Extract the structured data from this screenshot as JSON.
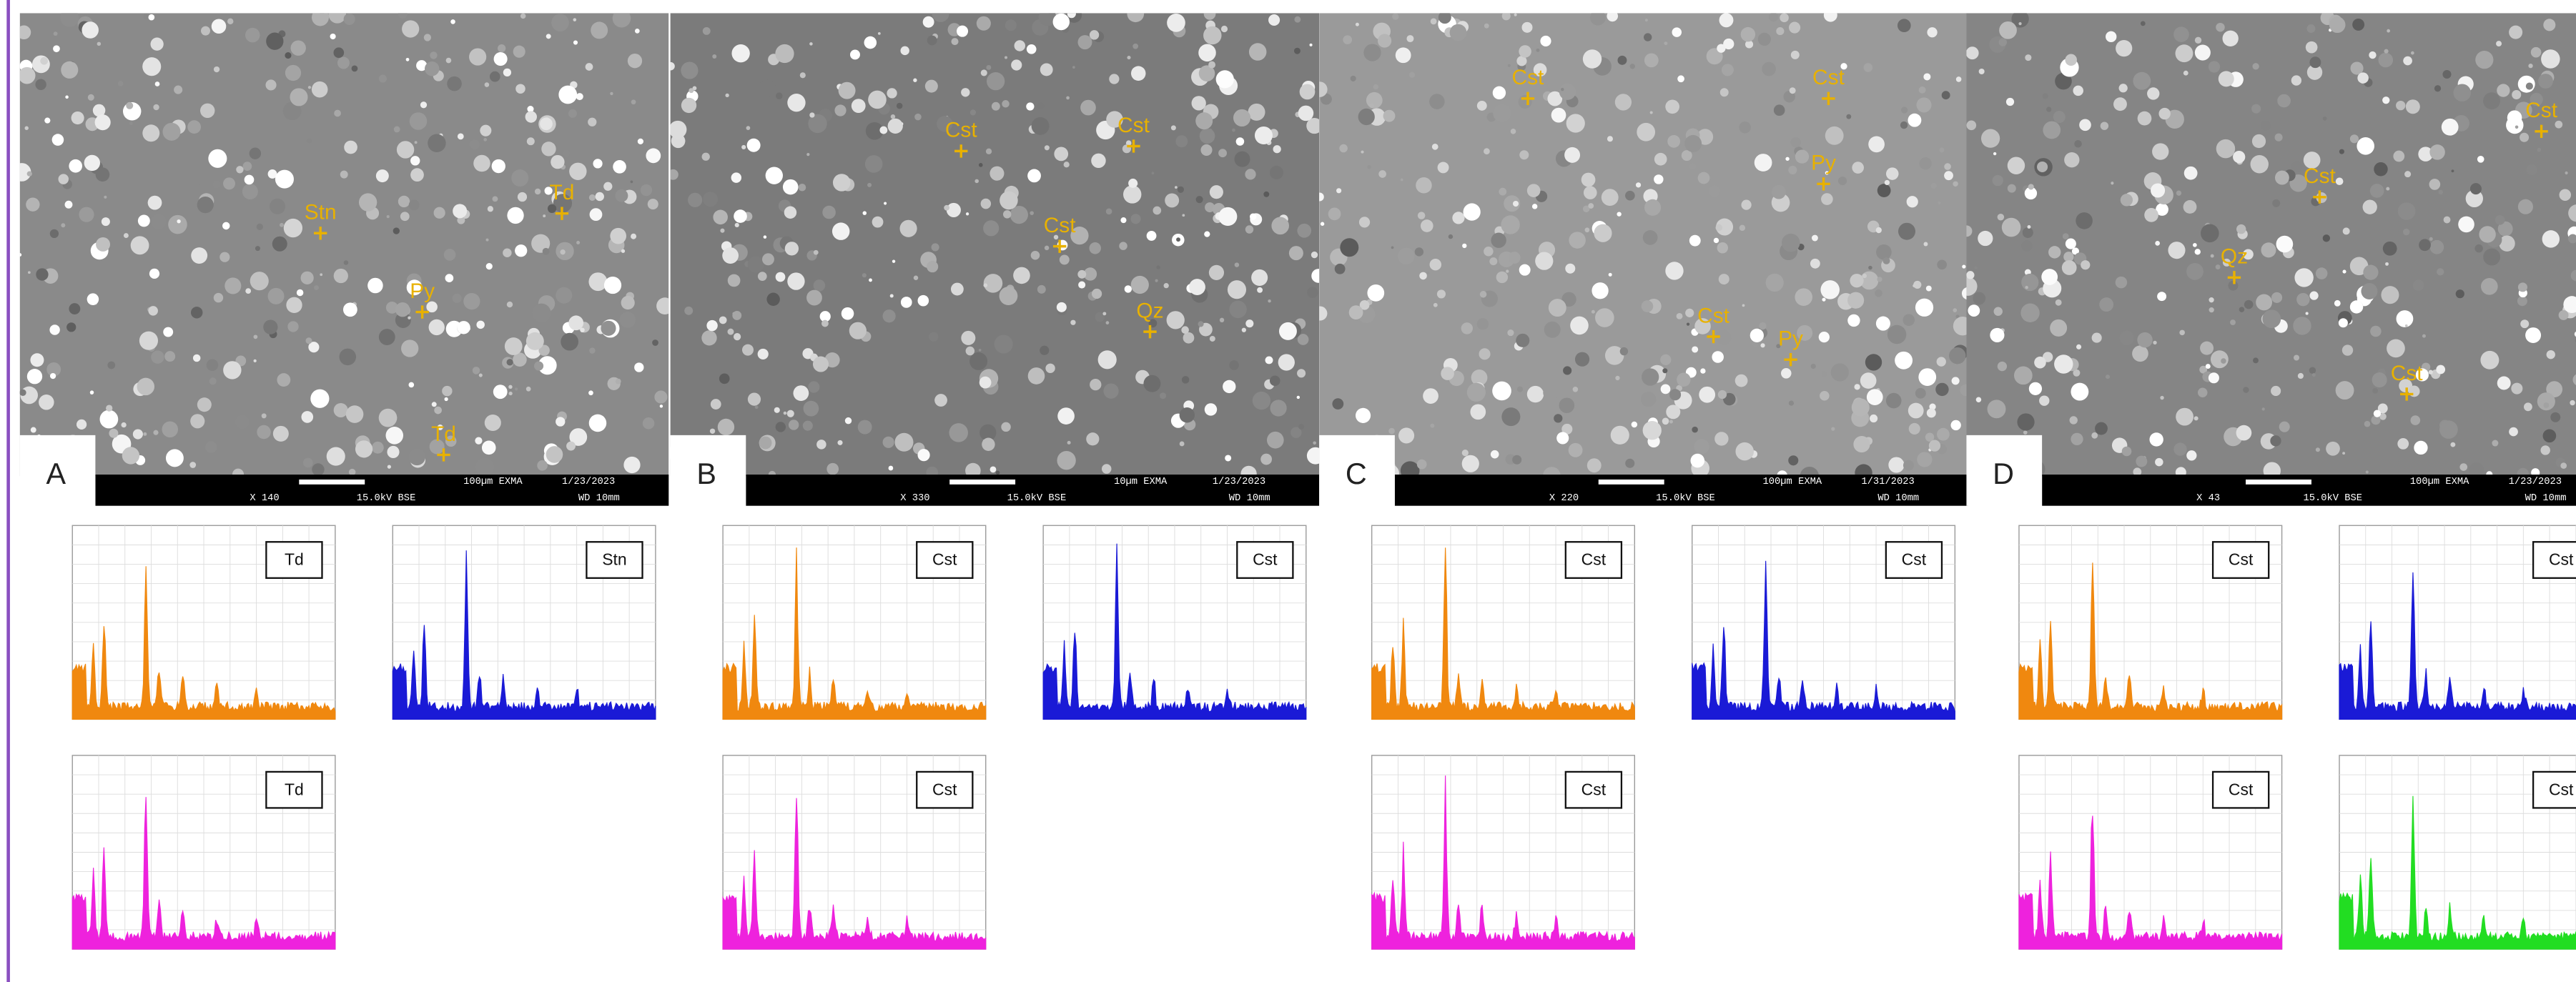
{
  "panels": [
    {
      "label": "A",
      "annotations": [
        "Stn",
        "Td",
        "Py",
        "Td"
      ],
      "info_bar": [
        "X 140",
        "15.0kV BSE",
        "100µm EXMA",
        "1/23/2023",
        "WD 10mm"
      ],
      "spectra": [
        {
          "label": "Td",
          "color": "#f0880f"
        },
        {
          "label": "Stn",
          "color": "#1a1ad6"
        },
        {
          "label": "Td",
          "color": "#ee22dd"
        }
      ]
    },
    {
      "label": "B",
      "annotations": [
        "Cst",
        "Cst",
        "Cst",
        "Qz"
      ],
      "info_bar": [
        "X 330",
        "15.0kV BSE",
        "10µm EXMA",
        "1/23/2023",
        "WD 10mm"
      ],
      "spectra": [
        {
          "label": "Cst",
          "color": "#f0880f"
        },
        {
          "label": "Cst",
          "color": "#1a1ad6"
        },
        {
          "label": "Cst",
          "color": "#ee22dd"
        }
      ]
    },
    {
      "label": "C",
      "annotations": [
        "Cst",
        "Cst",
        "Py",
        "Cst",
        "Py"
      ],
      "info_bar": [
        "X 220",
        "15.0kV BSE",
        "100µm EXMA",
        "1/31/2023",
        "WD 10mm"
      ],
      "spectra": [
        {
          "label": "Cst",
          "color": "#f0880f"
        },
        {
          "label": "Cst",
          "color": "#1a1ad6"
        },
        {
          "label": "Cst",
          "color": "#ee22dd"
        }
      ]
    },
    {
      "label": "D",
      "annotations": [
        "Cst",
        "Cst",
        "Qz",
        "Cst"
      ],
      "info_bar": [
        "X 43",
        "15.0kV BSE",
        "100µm EXMA",
        "1/23/2023",
        "WD 10mm"
      ],
      "spectra": [
        {
          "label": "Cst",
          "color": "#f0880f"
        },
        {
          "label": "Cst",
          "color": "#1a1ad6"
        },
        {
          "label": "Cst",
          "color": "#ee22dd"
        },
        {
          "label": "Cst",
          "color": "#22dd22"
        }
      ]
    }
  ]
}
